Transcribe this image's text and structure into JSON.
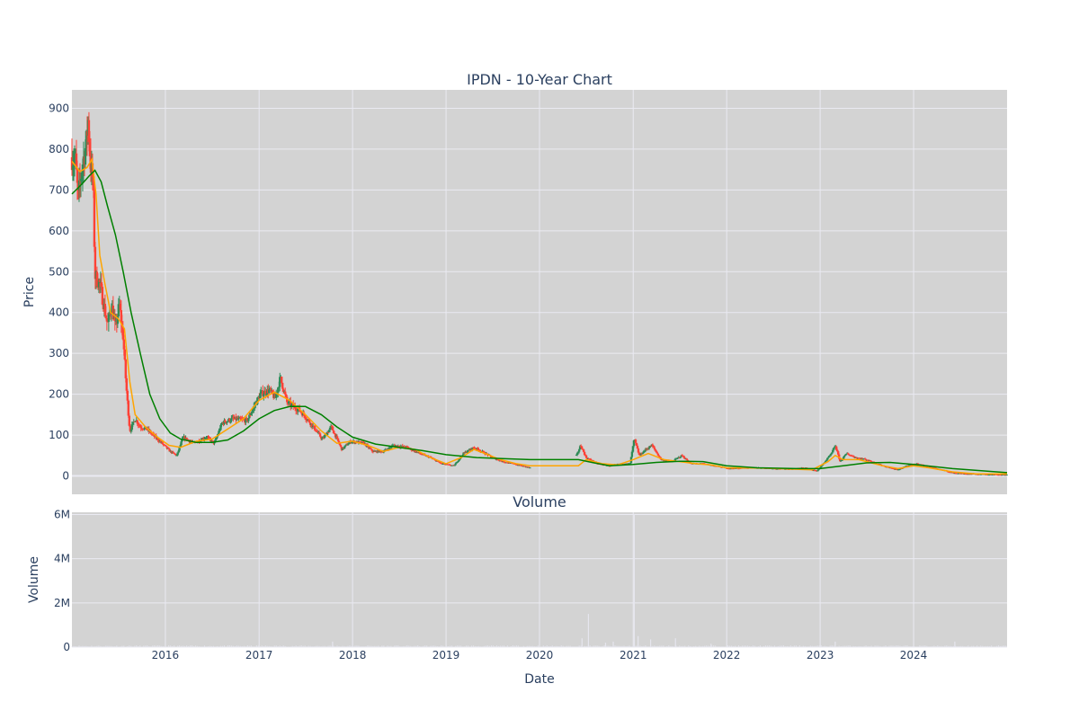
{
  "colors": {
    "plot_bg": "#d3d3d3",
    "grid": "#eaeaf2",
    "up": "#2e8b57",
    "down": "#ff4136",
    "ma_short": "#ffa500",
    "ma_long": "#008000",
    "volume": "#e6e6ee",
    "text": "#2a3f5f"
  },
  "chart_data": [
    {
      "type": "candlestick",
      "title": "IPDN - 10-Year Chart",
      "xlabel": "",
      "ylabel": "Price",
      "x_range": [
        "2015-01-01",
        "2024-12-31"
      ],
      "ylim": [
        -45,
        945
      ],
      "y_ticks": [
        0,
        100,
        200,
        300,
        400,
        500,
        600,
        700,
        800,
        900
      ],
      "grid": true,
      "legend": "none",
      "price_anchors": [
        [
          "2015-01-01",
          780
        ],
        [
          "2015-01-15",
          770
        ],
        [
          "2015-01-25",
          680
        ],
        [
          "2015-02-10",
          760
        ],
        [
          "2015-02-25",
          810
        ],
        [
          "2015-03-05",
          870
        ],
        [
          "2015-03-15",
          760
        ],
        [
          "2015-03-25",
          720
        ],
        [
          "2015-04-01",
          490
        ],
        [
          "2015-04-20",
          470
        ],
        [
          "2015-05-05",
          420
        ],
        [
          "2015-05-20",
          370
        ],
        [
          "2015-06-05",
          420
        ],
        [
          "2015-06-20",
          360
        ],
        [
          "2015-07-05",
          420
        ],
        [
          "2015-07-20",
          340
        ],
        [
          "2015-08-01",
          220
        ],
        [
          "2015-08-15",
          110
        ],
        [
          "2015-09-05",
          140
        ],
        [
          "2015-09-25",
          120
        ],
        [
          "2015-10-20",
          115
        ],
        [
          "2015-12-10",
          85
        ],
        [
          "2016-01-20",
          60
        ],
        [
          "2016-02-15",
          50
        ],
        [
          "2016-03-10",
          95
        ],
        [
          "2016-04-20",
          80
        ],
        [
          "2016-06-10",
          95
        ],
        [
          "2016-07-10",
          80
        ],
        [
          "2016-08-10",
          130
        ],
        [
          "2016-09-20",
          140
        ],
        [
          "2016-11-15",
          135
        ],
        [
          "2017-01-05",
          200
        ],
        [
          "2017-02-10",
          210
        ],
        [
          "2017-03-05",
          190
        ],
        [
          "2017-03-25",
          240
        ],
        [
          "2017-04-20",
          180
        ],
        [
          "2017-06-10",
          160
        ],
        [
          "2017-07-20",
          130
        ],
        [
          "2017-09-05",
          90
        ],
        [
          "2017-10-10",
          120
        ],
        [
          "2017-11-20",
          65
        ],
        [
          "2017-12-25",
          85
        ],
        [
          "2018-02-15",
          80
        ],
        [
          "2018-03-20",
          60
        ],
        [
          "2018-05-01",
          60
        ],
        [
          "2018-06-10",
          75
        ],
        [
          "2018-08-01",
          70
        ],
        [
          "2018-09-20",
          55
        ],
        [
          "2018-11-01",
          45
        ],
        [
          "2018-12-15",
          30
        ],
        [
          "2019-02-01",
          25
        ],
        [
          "2019-03-10",
          55
        ],
        [
          "2019-04-20",
          70
        ],
        [
          "2019-05-20",
          60
        ],
        [
          "2019-07-01",
          45
        ],
        [
          "2019-08-10",
          35
        ],
        [
          "2019-09-20",
          30
        ],
        [
          "2019-11-25",
          20
        ],
        [
          "2020-05-25",
          50
        ],
        [
          "2020-06-10",
          75
        ],
        [
          "2020-07-01",
          45
        ],
        [
          "2020-08-15",
          30
        ],
        [
          "2020-10-01",
          25
        ],
        [
          "2020-11-15",
          30
        ],
        [
          "2020-12-20",
          30
        ],
        [
          "2021-01-05",
          90
        ],
        [
          "2021-01-25",
          50
        ],
        [
          "2021-02-20",
          65
        ],
        [
          "2021-03-15",
          75
        ],
        [
          "2021-04-20",
          40
        ],
        [
          "2021-06-01",
          35
        ],
        [
          "2021-07-10",
          50
        ],
        [
          "2021-08-15",
          30
        ],
        [
          "2021-10-01",
          30
        ],
        [
          "2021-11-15",
          25
        ],
        [
          "2022-01-15",
          18
        ],
        [
          "2022-03-15",
          20
        ],
        [
          "2022-05-15",
          20
        ],
        [
          "2022-07-15",
          18
        ],
        [
          "2022-09-15",
          17
        ],
        [
          "2022-11-01",
          20
        ],
        [
          "2022-12-20",
          12
        ],
        [
          "2023-01-20",
          35
        ],
        [
          "2023-02-15",
          55
        ],
        [
          "2023-03-01",
          75
        ],
        [
          "2023-03-20",
          35
        ],
        [
          "2023-04-15",
          55
        ],
        [
          "2023-05-20",
          45
        ],
        [
          "2023-07-01",
          40
        ],
        [
          "2023-08-10",
          30
        ],
        [
          "2023-09-20",
          22
        ],
        [
          "2023-11-01",
          15
        ],
        [
          "2023-12-05",
          25
        ],
        [
          "2024-01-15",
          30
        ],
        [
          "2024-03-01",
          22
        ],
        [
          "2024-04-20",
          15
        ],
        [
          "2024-06-01",
          8
        ],
        [
          "2024-08-01",
          5
        ],
        [
          "2024-10-01",
          4
        ],
        [
          "2024-12-31",
          3
        ]
      ],
      "series": [
        {
          "kind": "moving_average",
          "color": "#ffa500",
          "points": [
            [
              "2015-01-01",
              770
            ],
            [
              "2015-02-01",
              745
            ],
            [
              "2015-03-01",
              755
            ],
            [
              "2015-03-20",
              775
            ],
            [
              "2015-04-05",
              690
            ],
            [
              "2015-04-20",
              540
            ],
            [
              "2015-05-10",
              470
            ],
            [
              "2015-06-01",
              400
            ],
            [
              "2015-07-01",
              385
            ],
            [
              "2015-07-25",
              360
            ],
            [
              "2015-08-15",
              230
            ],
            [
              "2015-09-05",
              150
            ],
            [
              "2015-10-15",
              120
            ],
            [
              "2015-12-01",
              95
            ],
            [
              "2016-01-15",
              75
            ],
            [
              "2016-03-01",
              70
            ],
            [
              "2016-05-01",
              85
            ],
            [
              "2016-07-01",
              90
            ],
            [
              "2016-09-01",
              115
            ],
            [
              "2016-11-01",
              140
            ],
            [
              "2017-01-01",
              185
            ],
            [
              "2017-03-01",
              205
            ],
            [
              "2017-05-01",
              185
            ],
            [
              "2017-07-01",
              150
            ],
            [
              "2017-09-01",
              110
            ],
            [
              "2017-11-01",
              80
            ],
            [
              "2018-01-01",
              85
            ],
            [
              "2018-03-01",
              75
            ],
            [
              "2018-05-01",
              60
            ],
            [
              "2018-07-01",
              70
            ],
            [
              "2018-09-01",
              65
            ],
            [
              "2018-11-01",
              45
            ],
            [
              "2019-01-01",
              30
            ],
            [
              "2019-03-01",
              45
            ],
            [
              "2019-04-20",
              65
            ],
            [
              "2019-06-01",
              55
            ],
            [
              "2019-08-01",
              40
            ],
            [
              "2019-10-01",
              30
            ],
            [
              "2019-11-25",
              25
            ],
            [
              "2020-06-01",
              25
            ],
            [
              "2020-07-01",
              40
            ],
            [
              "2020-09-01",
              30
            ],
            [
              "2020-11-01",
              27
            ],
            [
              "2021-01-01",
              40
            ],
            [
              "2021-03-01",
              55
            ],
            [
              "2021-05-01",
              40
            ],
            [
              "2021-07-01",
              35
            ],
            [
              "2021-09-01",
              30
            ],
            [
              "2021-11-01",
              27
            ],
            [
              "2022-01-01",
              20
            ],
            [
              "2022-06-01",
              19
            ],
            [
              "2022-12-01",
              15
            ],
            [
              "2023-02-01",
              35
            ],
            [
              "2023-03-01",
              50
            ],
            [
              "2023-04-01",
              40
            ],
            [
              "2023-06-01",
              40
            ],
            [
              "2023-09-01",
              25
            ],
            [
              "2023-11-01",
              18
            ],
            [
              "2024-01-01",
              25
            ],
            [
              "2024-03-01",
              20
            ],
            [
              "2024-06-01",
              10
            ],
            [
              "2024-09-01",
              5
            ],
            [
              "2024-12-31",
              5
            ]
          ]
        },
        {
          "kind": "moving_average",
          "color": "#008000",
          "points": [
            [
              "2015-01-01",
              690
            ],
            [
              "2015-02-10",
              715
            ],
            [
              "2015-03-10",
              735
            ],
            [
              "2015-04-01",
              748
            ],
            [
              "2015-04-25",
              720
            ],
            [
              "2015-05-20",
              660
            ],
            [
              "2015-06-20",
              590
            ],
            [
              "2015-07-20",
              500
            ],
            [
              "2015-08-20",
              400
            ],
            [
              "2015-09-25",
              300
            ],
            [
              "2015-11-01",
              200
            ],
            [
              "2015-12-10",
              140
            ],
            [
              "2016-01-20",
              105
            ],
            [
              "2016-03-01",
              90
            ],
            [
              "2016-05-01",
              82
            ],
            [
              "2016-07-01",
              82
            ],
            [
              "2016-09-01",
              88
            ],
            [
              "2016-11-01",
              110
            ],
            [
              "2017-01-01",
              140
            ],
            [
              "2017-03-01",
              160
            ],
            [
              "2017-05-01",
              170
            ],
            [
              "2017-07-01",
              170
            ],
            [
              "2017-09-01",
              150
            ],
            [
              "2017-11-01",
              120
            ],
            [
              "2018-01-01",
              95
            ],
            [
              "2018-04-01",
              78
            ],
            [
              "2018-07-01",
              70
            ],
            [
              "2018-10-01",
              62
            ],
            [
              "2019-01-01",
              52
            ],
            [
              "2019-05-01",
              45
            ],
            [
              "2019-09-01",
              42
            ],
            [
              "2019-11-25",
              40
            ],
            [
              "2020-06-01",
              40
            ],
            [
              "2020-08-01",
              32
            ],
            [
              "2020-10-01",
              25
            ],
            [
              "2021-01-01",
              28
            ],
            [
              "2021-04-01",
              33
            ],
            [
              "2021-07-01",
              36
            ],
            [
              "2021-10-01",
              35
            ],
            [
              "2022-01-01",
              25
            ],
            [
              "2022-05-01",
              20
            ],
            [
              "2022-10-01",
              18
            ],
            [
              "2023-01-01",
              18
            ],
            [
              "2023-04-01",
              25
            ],
            [
              "2023-07-01",
              32
            ],
            [
              "2023-10-01",
              33
            ],
            [
              "2024-01-01",
              28
            ],
            [
              "2024-06-01",
              18
            ],
            [
              "2024-12-31",
              8
            ]
          ]
        }
      ]
    },
    {
      "type": "bar",
      "title": "Volume",
      "xlabel": "Date",
      "ylabel": "Volume",
      "ylim": [
        0,
        6100000
      ],
      "y_ticks": [
        0,
        2000000,
        4000000,
        6000000
      ],
      "y_tick_labels": [
        "0",
        "2M",
        "4M",
        "6M"
      ],
      "x_ticks": [
        "2016-01-01",
        "2017-01-01",
        "2018-01-01",
        "2019-01-01",
        "2020-01-01",
        "2021-01-01",
        "2022-01-01",
        "2023-01-01",
        "2024-01-01"
      ],
      "x_tick_labels": [
        "2016",
        "2017",
        "2018",
        "2019",
        "2020",
        "2021",
        "2022",
        "2023",
        "2024"
      ],
      "grid": true,
      "spikes": [
        [
          "2020-06-15",
          400000
        ],
        [
          "2020-07-10",
          1500000
        ],
        [
          "2020-09-15",
          200000
        ],
        [
          "2020-10-15",
          250000
        ],
        [
          "2021-01-05",
          6000000
        ],
        [
          "2021-01-20",
          500000
        ],
        [
          "2021-03-10",
          350000
        ],
        [
          "2021-06-15",
          400000
        ],
        [
          "2017-10-15",
          250000
        ],
        [
          "2023-03-01",
          250000
        ],
        [
          "2024-06-10",
          250000
        ],
        [
          "2021-11-01",
          150000
        ]
      ]
    }
  ]
}
